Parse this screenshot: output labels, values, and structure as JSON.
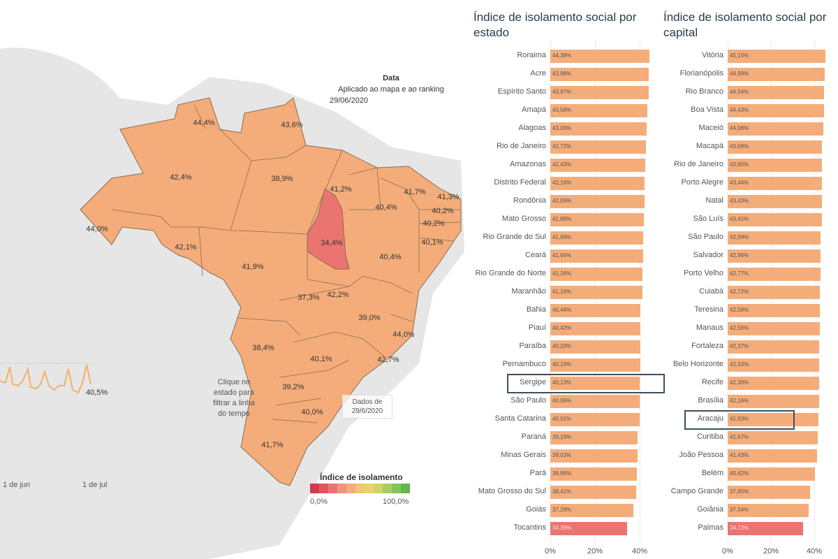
{
  "map": {
    "date_header": "Data",
    "date_sub": "Aplicado ao mapa e ao ranking",
    "date_value": "29/06/2020",
    "hint": "Clique no estado para filtrar a linha do tempo",
    "dados": "Dados de 29/6/2020",
    "legend_title": "Índice de isolamento",
    "legend_min": "0,0%",
    "legend_max": "100,0%",
    "legend_colors": [
      "#d63a4a",
      "#e05560",
      "#ea7570",
      "#f0947c",
      "#f4ad7a",
      "#f3c46a",
      "#e9d36a",
      "#cdd565",
      "#a8cf5e",
      "#85c458",
      "#62b54f"
    ],
    "timeline_dates": [
      "1 de jun",
      "1 de jul"
    ],
    "timeline_last": "40,5%",
    "colors": {
      "normal": "#f4ad7a",
      "low": "#ea7570",
      "ocean": "#ffffff",
      "land": "#e6e6e6",
      "border": "#8a6b50"
    },
    "state_labels": [
      "44,4%",
      "43,6%",
      "42,4%",
      "38,9%",
      "41,2%",
      "41,7%",
      "41,3%",
      "40,4%",
      "40,2%",
      "40,2%",
      "44,0%",
      "34,4%",
      "40,1%",
      "42,1%",
      "41,9%",
      "40,4%",
      "37,3%",
      "42,2%",
      "39,0%",
      "44,0%",
      "38,4%",
      "40,1%",
      "42,7%",
      "39,2%",
      "40,0%",
      "41,7%"
    ]
  },
  "chart_data": [
    {
      "type": "bar",
      "title": "Índice de isolamento social por estado",
      "x_ticks": [
        "0%",
        "20%",
        "40%"
      ],
      "xlim": [
        0,
        45
      ],
      "highlight": "Sergipe",
      "categories": [
        "Roraima",
        "Acre",
        "Espírito Santo",
        "Amapá",
        "Alagoas",
        "Rio de Janeiro",
        "Amazonas",
        "Distrito Federal",
        "Rondônia",
        "Mato Grosso",
        "Rio Grande do Sul",
        "Ceará",
        "Rio Grande do Norte",
        "Maranhão",
        "Bahia",
        "Piauí",
        "Paraíba",
        "Pernambuco",
        "Sergipe",
        "São Paulo",
        "Santa Catarina",
        "Paraná",
        "Minas Gerais",
        "Pará",
        "Mato Grosso do Sul",
        "Goiás",
        "Tocantins"
      ],
      "values": [
        44.38,
        43.98,
        43.97,
        43.58,
        43.09,
        42.72,
        42.43,
        42.16,
        42.09,
        41.88,
        41.69,
        41.66,
        41.26,
        41.16,
        40.44,
        40.42,
        40.2,
        40.19,
        40.13,
        40.06,
        40.01,
        39.19,
        39.03,
        38.86,
        38.41,
        37.29,
        34.39
      ],
      "labels": [
        "44,38%",
        "43,98%",
        "43,97%",
        "43,58%",
        "43,09%",
        "42,72%",
        "42,43%",
        "42,16%",
        "42,09%",
        "41,88%",
        "41,69%",
        "41,66%",
        "41,26%",
        "41,16%",
        "40,44%",
        "40,42%",
        "40,20%",
        "40,19%",
        "40,13%",
        "40,06%",
        "40,01%",
        "39,19%",
        "39,03%",
        "38,86%",
        "38,41%",
        "37,29%",
        "34,39%"
      ]
    },
    {
      "type": "bar",
      "title": "Índice de isolamento social por capital",
      "x_ticks": [
        "0%",
        "20%",
        "40%"
      ],
      "xlim": [
        0,
        45
      ],
      "highlight": "Aracaju",
      "categories": [
        "Vitória",
        "Florianópolis",
        "Rio Branco",
        "Boa Vista",
        "Maceió",
        "Macapá",
        "Rio de Janeiro",
        "Porto Alegre",
        "Natal",
        "São Luís",
        "São Paulo",
        "Salvador",
        "Porto Velho",
        "Cuiabá",
        "Teresina",
        "Manaus",
        "Fortaleza",
        "Belo Horizonte",
        "Recife",
        "Brasília",
        "Aracaju",
        "Curitiba",
        "João Pessoa",
        "Belém",
        "Campo Grande",
        "Goiânia",
        "Palmas"
      ],
      "values": [
        45.15,
        44.99,
        44.54,
        44.43,
        44.06,
        43.68,
        43.65,
        43.44,
        43.43,
        43.41,
        42.99,
        42.96,
        42.77,
        42.72,
        42.56,
        42.56,
        42.37,
        42.33,
        42.3,
        42.16,
        41.93,
        41.67,
        41.43,
        40.42,
        37.95,
        37.54,
        34.72
      ],
      "labels": [
        "45,15%",
        "44,99%",
        "44,54%",
        "44,43%",
        "44,06%",
        "43,68%",
        "43,65%",
        "43,44%",
        "43,43%",
        "43,41%",
        "42,99%",
        "42,96%",
        "42,77%",
        "42,72%",
        "42,56%",
        "42,56%",
        "42,37%",
        "42,33%",
        "42,30%",
        "42,16%",
        "41,93%",
        "41,67%",
        "41,43%",
        "40,42%",
        "37,95%",
        "37,54%",
        "34,72%"
      ]
    }
  ]
}
